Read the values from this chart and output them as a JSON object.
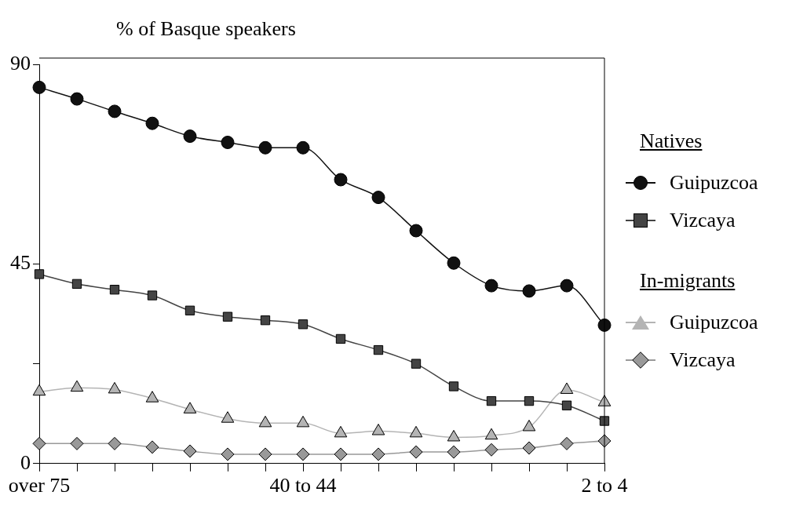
{
  "chart_data": {
    "type": "line",
    "title": "% of Basque speakers",
    "categories": [
      "over 75",
      null,
      null,
      null,
      null,
      null,
      null,
      "40 to 44",
      null,
      null,
      null,
      null,
      null,
      null,
      null,
      "2 to 4"
    ],
    "series": [
      {
        "name": "Guipuzcoa",
        "color": "#111111",
        "marker": "circle",
        "values": [
          84.8,
          82.2,
          79.4,
          76.7,
          73.8,
          72.4,
          71.2,
          71.2,
          64.0,
          60.0,
          52.5,
          45.2,
          40.1,
          38.9,
          40.1,
          31.2
        ]
      },
      {
        "name": "Vizcaya",
        "color": "#444444",
        "marker": "square",
        "values": [
          42.7,
          40.5,
          39.2,
          37.9,
          34.5,
          33.1,
          32.3,
          31.4,
          28.1,
          25.6,
          22.5,
          17.4,
          14.1,
          14.1,
          13.1,
          9.6
        ]
      },
      {
        "name": "Guipuzcoa",
        "color": "#b4b4b4",
        "marker": "triangle",
        "values": [
          16.2,
          17.1,
          16.7,
          14.7,
          12.2,
          10.1,
          9.1,
          9.1,
          6.8,
          7.3,
          6.8,
          5.9,
          6.3,
          8.2,
          16.6,
          13.8
        ]
      },
      {
        "name": "Vizcaya",
        "color": "#999999",
        "marker": "diamond",
        "values": [
          4.5,
          4.5,
          4.5,
          3.7,
          2.8,
          2.1,
          2.1,
          2.1,
          2.1,
          2.1,
          2.6,
          2.6,
          3.1,
          3.5,
          4.5,
          5.1
        ]
      }
    ],
    "annotations": [
      "Natives",
      "In-migrants"
    ],
    "ylim": [
      0,
      90
    ],
    "yticks": [
      0,
      {
        "value": 22.5,
        "label": null
      },
      45,
      90
    ],
    "grid": false,
    "legend": "right"
  }
}
